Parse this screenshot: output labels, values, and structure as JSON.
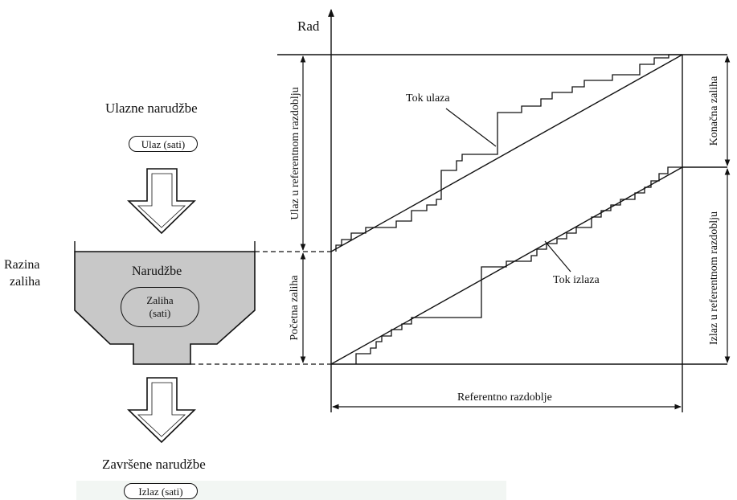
{
  "left": {
    "input_orders": "Ulazne narudžbe",
    "input_pill": "Ulaz (sati)",
    "stock_level_line1": "Razina",
    "stock_level_line2": "zaliha",
    "orders": "Narudžbe",
    "stock_pill_line1": "Zaliha",
    "stock_pill_line2": "(sati)",
    "completed_orders": "Završene narudžbe",
    "output_pill": "Izlaz (sati)"
  },
  "graph": {
    "y_axis_label": "Rad",
    "input_flow": "Tok ulaza",
    "output_flow": "Tok izlaza",
    "reference_period": "Referentno razdoblje",
    "input_in_period": "Ulaz u referentnom razdoblju",
    "initial_stock": "Početna zaliha",
    "final_stock": "Konačna zaliha",
    "output_in_period": "Izlaz u referentnom razdoblju"
  },
  "colors": {
    "ink": "#111111",
    "hopper_fill": "#c8c8c8",
    "band": "#f2f6f3"
  }
}
